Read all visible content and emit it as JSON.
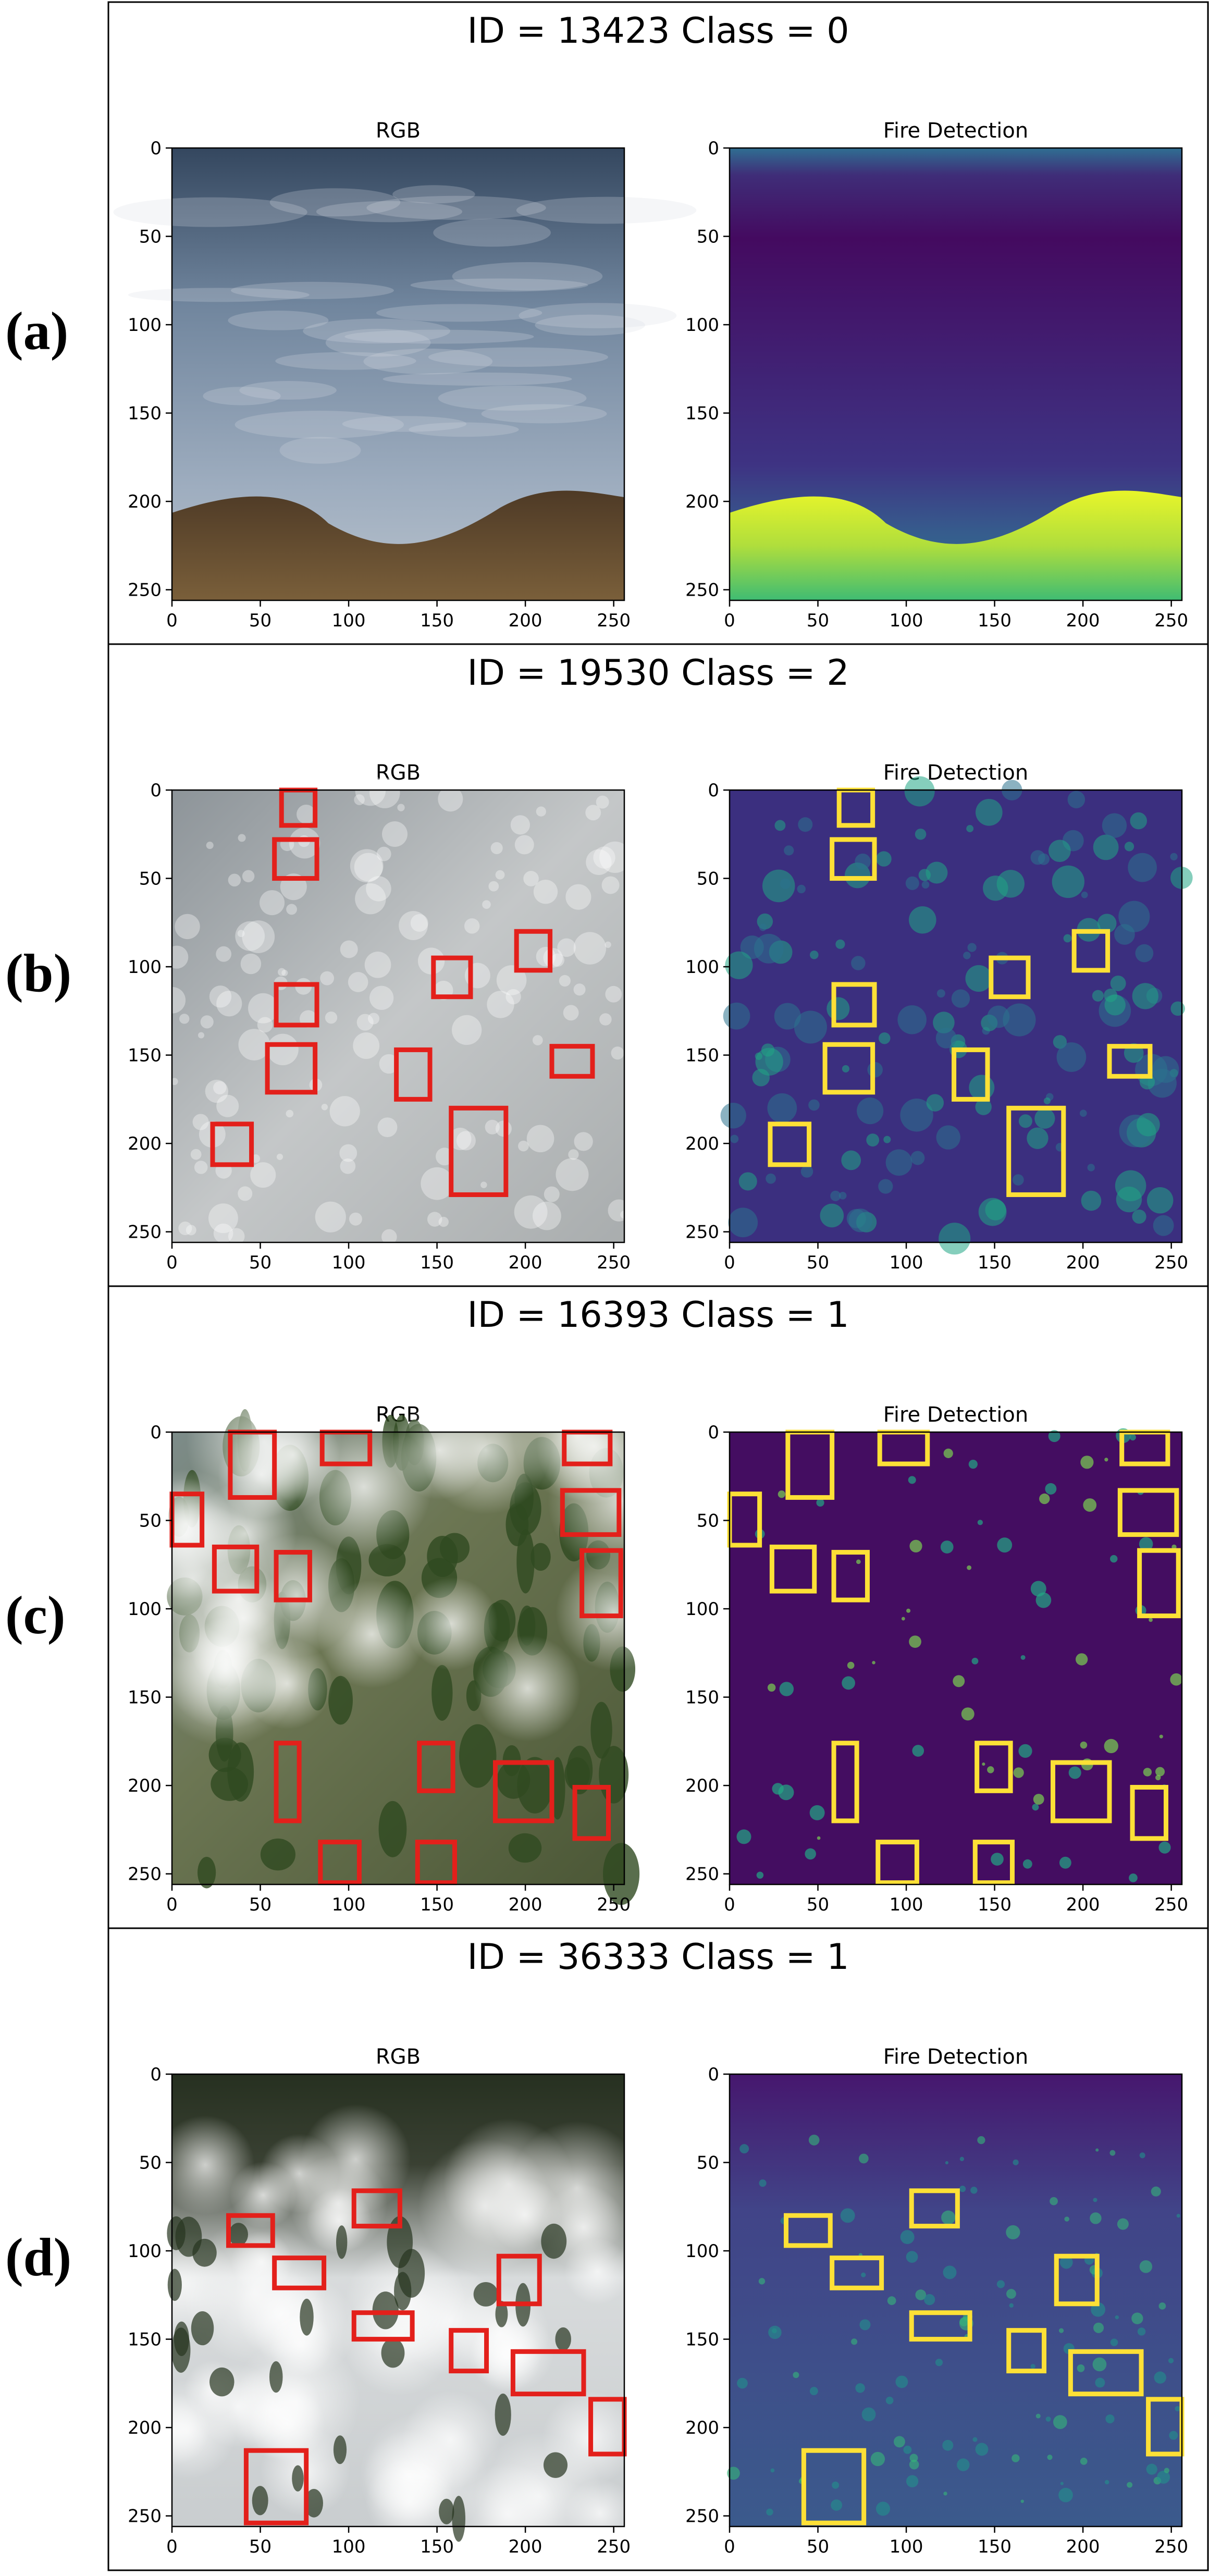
{
  "figure": {
    "panel_labels": [
      "(a)",
      "(b)",
      "(c)",
      "(d)"
    ],
    "subplot_titles": {
      "left": "RGB",
      "right": "Fire Detection"
    },
    "tick_labels": {
      "x": [
        "0",
        "50",
        "100",
        "150",
        "200",
        "250"
      ],
      "y": [
        "0",
        "50",
        "100",
        "150",
        "200",
        "250"
      ]
    },
    "axis_range": {
      "x": [
        0,
        256
      ],
      "y": [
        0,
        256
      ]
    },
    "rgb_box_color": "#e3201b",
    "fire_box_color": "#fde036",
    "panels": [
      {
        "title": "ID = 13423 Class = 0",
        "scene": "sky",
        "boxes": []
      },
      {
        "title": "ID = 19530 Class = 2",
        "scene": "smoke",
        "boxes": [
          [
            62,
            0,
            81,
            20
          ],
          [
            58,
            28,
            82,
            50
          ],
          [
            59,
            110,
            82,
            133
          ],
          [
            148,
            95,
            169,
            117
          ],
          [
            195,
            80,
            214,
            102
          ],
          [
            54,
            144,
            81,
            171
          ],
          [
            127,
            147,
            146,
            175
          ],
          [
            215,
            145,
            238,
            162
          ],
          [
            23,
            189,
            45,
            212
          ],
          [
            158,
            180,
            189,
            229
          ]
        ]
      },
      {
        "title": "ID = 16393 Class = 1",
        "scene": "forest",
        "boxes": [
          [
            33,
            0,
            58,
            37
          ],
          [
            85,
            0,
            112,
            18
          ],
          [
            222,
            0,
            248,
            18
          ],
          [
            0,
            35,
            17,
            64
          ],
          [
            24,
            65,
            48,
            90
          ],
          [
            59,
            68,
            78,
            95
          ],
          [
            221,
            33,
            253,
            58
          ],
          [
            232,
            67,
            254,
            104
          ],
          [
            59,
            176,
            72,
            220
          ],
          [
            140,
            176,
            159,
            203
          ],
          [
            183,
            187,
            215,
            220
          ],
          [
            228,
            201,
            247,
            230
          ],
          [
            84,
            232,
            106,
            255
          ],
          [
            139,
            232,
            160,
            255
          ]
        ]
      },
      {
        "title": "ID = 36333 Class = 1",
        "scene": "dense",
        "boxes": [
          [
            32,
            80,
            57,
            97
          ],
          [
            103,
            66,
            129,
            86
          ],
          [
            58,
            104,
            86,
            121
          ],
          [
            103,
            135,
            136,
            150
          ],
          [
            185,
            103,
            208,
            130
          ],
          [
            158,
            145,
            178,
            168
          ],
          [
            193,
            157,
            233,
            181
          ],
          [
            237,
            184,
            256,
            215
          ],
          [
            42,
            213,
            76,
            254
          ]
        ]
      }
    ]
  }
}
